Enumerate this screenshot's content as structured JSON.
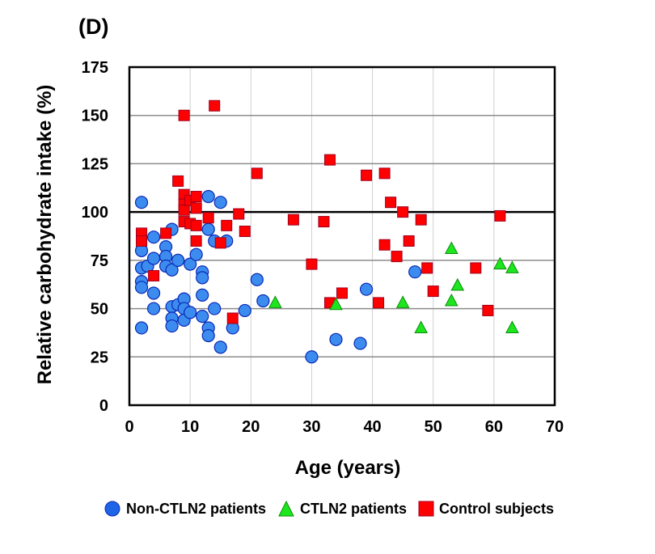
{
  "panel_label": "(D)",
  "chart_data": {
    "type": "scatter",
    "title": "(D)",
    "xlabel": "Age (years)",
    "ylabel": "Relative carbohydrate intake (%)",
    "xlim": [
      0,
      70
    ],
    "ylim": [
      0,
      175
    ],
    "xticks": [
      0,
      10,
      20,
      30,
      40,
      50,
      60,
      70
    ],
    "yticks": [
      0,
      25,
      50,
      75,
      100,
      125,
      150,
      175
    ],
    "grid": true,
    "reference_line": {
      "y": 100,
      "style": "solid-black"
    },
    "legend_placement": "bottom",
    "series": [
      {
        "name": "Non-CTLN2 patients",
        "marker": "circle",
        "color": "#3c8cf0",
        "edge_color": "#0a28b4",
        "points": [
          [
            2,
            105
          ],
          [
            2,
            80
          ],
          [
            2,
            71
          ],
          [
            2,
            64
          ],
          [
            2,
            61
          ],
          [
            2,
            40
          ],
          [
            3,
            72
          ],
          [
            4,
            87
          ],
          [
            4,
            76
          ],
          [
            4,
            58
          ],
          [
            4,
            50
          ],
          [
            6,
            82
          ],
          [
            6,
            77
          ],
          [
            6,
            72
          ],
          [
            7,
            91
          ],
          [
            7,
            70
          ],
          [
            7,
            51
          ],
          [
            7,
            45
          ],
          [
            7,
            41
          ],
          [
            8,
            75
          ],
          [
            8,
            52
          ],
          [
            9,
            55
          ],
          [
            9,
            50
          ],
          [
            9,
            44
          ],
          [
            10,
            73
          ],
          [
            10,
            48
          ],
          [
            11,
            78
          ],
          [
            12,
            69
          ],
          [
            12,
            66
          ],
          [
            12,
            57
          ],
          [
            12,
            46
          ],
          [
            13,
            108
          ],
          [
            13,
            91
          ],
          [
            13,
            40
          ],
          [
            13,
            36
          ],
          [
            14,
            85
          ],
          [
            14,
            50
          ],
          [
            15,
            105
          ],
          [
            15,
            30
          ],
          [
            16,
            85
          ],
          [
            17,
            40
          ],
          [
            19,
            49
          ],
          [
            21,
            65
          ],
          [
            22,
            54
          ],
          [
            30,
            25
          ],
          [
            34,
            34
          ],
          [
            38,
            32
          ],
          [
            39,
            60
          ],
          [
            47,
            69
          ]
        ]
      },
      {
        "name": "CTLN2 patients",
        "marker": "triangle",
        "color": "#1ee61e",
        "edge_color": "#0a8c0a",
        "points": [
          [
            24,
            53
          ],
          [
            34,
            52
          ],
          [
            45,
            53
          ],
          [
            48,
            40
          ],
          [
            53,
            81
          ],
          [
            53,
            54
          ],
          [
            54,
            62
          ],
          [
            61,
            73
          ],
          [
            63,
            71
          ],
          [
            63,
            40
          ]
        ]
      },
      {
        "name": "Control subjects",
        "marker": "square",
        "color": "#ff0000",
        "edge_color": "#a00020",
        "points": [
          [
            2,
            89
          ],
          [
            2,
            85
          ],
          [
            4,
            67
          ],
          [
            6,
            89
          ],
          [
            8,
            116
          ],
          [
            9,
            150
          ],
          [
            9,
            109
          ],
          [
            9,
            104
          ],
          [
            9,
            101
          ],
          [
            9,
            95
          ],
          [
            10,
            106
          ],
          [
            10,
            94
          ],
          [
            11,
            108
          ],
          [
            11,
            102
          ],
          [
            11,
            93
          ],
          [
            11,
            85
          ],
          [
            13,
            97
          ],
          [
            14,
            155
          ],
          [
            15,
            84
          ],
          [
            16,
            93
          ],
          [
            17,
            45
          ],
          [
            18,
            99
          ],
          [
            19,
            90
          ],
          [
            21,
            120
          ],
          [
            27,
            96
          ],
          [
            30,
            73
          ],
          [
            32,
            95
          ],
          [
            33,
            127
          ],
          [
            33,
            53
          ],
          [
            35,
            58
          ],
          [
            39,
            119
          ],
          [
            41,
            53
          ],
          [
            42,
            120
          ],
          [
            42,
            83
          ],
          [
            43,
            105
          ],
          [
            44,
            77
          ],
          [
            45,
            100
          ],
          [
            46,
            85
          ],
          [
            48,
            96
          ],
          [
            49,
            71
          ],
          [
            50,
            59
          ],
          [
            57,
            71
          ],
          [
            59,
            49
          ],
          [
            61,
            98
          ]
        ]
      }
    ]
  }
}
